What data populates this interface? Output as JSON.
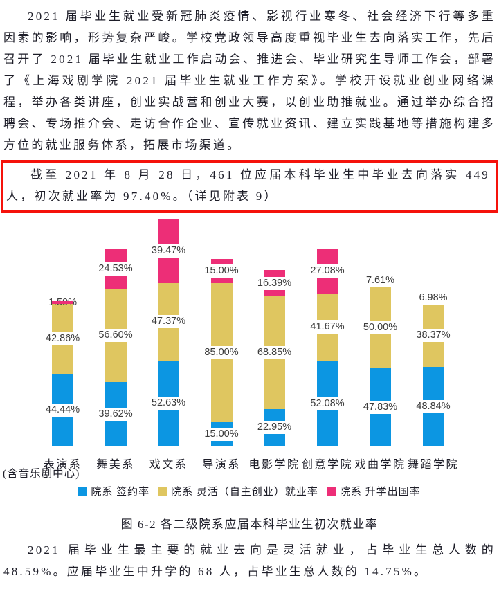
{
  "document": {
    "paragraph1": "2021 届毕业生就业受新冠肺炎疫情、影视行业寒冬、社会经济下行等多重因素的影响，形势复杂严峻。学校党政领导高度重视毕业生去向落实工作，先后召开了 2021 届毕业生就业工作启动会、推进会、毕业研究生导师工作会，部署了《上海戏剧学院 2021 届毕业生就业工作方案》。学校开设就业创业网络课程，举办各类讲座，创业实战营和创业大赛，以创业助推就业。通过举办综合招聘会、专场推介会、走访合作企业、宣传就业资讯、建立实践基地等措施构建多方位的就业服务体系，拓展市场渠道。",
    "highlight_text": "截至 2021 年 8 月 28 日，461 位应届本科毕业生中毕业去向落实 449 人，初次就业率为 97.40%。（详见附表 9）",
    "highlight_border_color": "#f5120b",
    "caption": "图 6-2 各二级院系应届本科毕业生初次就业率",
    "paragraph3": "2021 届毕业生最主要的就业去向是灵活就业，占毕业生总人数的 48.59%。应届毕业生中升学的 68 人，占毕业生总人数的 14.75%。"
  },
  "chart_data": {
    "type": "bar",
    "stacked": true,
    "grid": false,
    "value_axis_visible": false,
    "legend_position": "bottom",
    "title": "图 6-2 各二级院系应届本科毕业生初次就业率",
    "categories": [
      "表演系",
      "舞美系",
      "戏文系",
      "导演系",
      "电影学院",
      "创意学院",
      "戏曲学院",
      "舞蹈学院"
    ],
    "category_note": {
      "index": 0,
      "text": "(含音乐剧中心)"
    },
    "series": [
      {
        "key": "signed",
        "name": "院系 签约率",
        "color": "#0c96e2",
        "values": [
          44.44,
          39.62,
          52.63,
          15.0,
          22.95,
          52.08,
          47.83,
          48.84
        ]
      },
      {
        "key": "flexible",
        "name": "院系 灵活（自主创业）就业率",
        "color": "#dfc660",
        "values": [
          42.86,
          56.6,
          47.37,
          85.0,
          68.85,
          41.67,
          50.0,
          38.37
        ]
      },
      {
        "key": "further-study",
        "name": "院系 升学出国率",
        "color": "#ed2e77",
        "values": [
          1.59,
          24.53,
          39.47,
          15.0,
          16.39,
          27.08,
          7.61,
          6.98
        ]
      }
    ],
    "data_label_format": "0.00%"
  }
}
